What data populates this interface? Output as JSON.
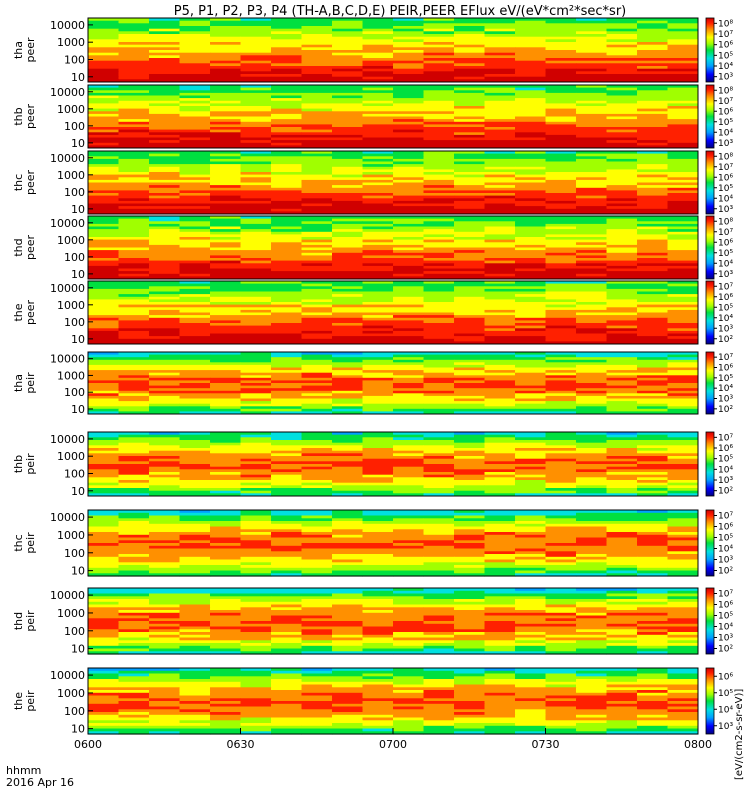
{
  "title": "P5, P1, P2, P3, P4 (TH-A,B,C,D,E) PEIR,PEER EFlux eV/(eV*cm²*sec*sr)",
  "time_axis": {
    "label": "hhmm",
    "date": "2016 Apr 16",
    "ticks": [
      "0600",
      "0630",
      "0700",
      "0730",
      "0800"
    ]
  },
  "colorbar_label": "[eV/(cm2-s-sr-eV)]",
  "y_ticks": [
    "10000",
    "1000",
    "100",
    "10"
  ],
  "panels": [
    {
      "probe": "tha",
      "species": "peer",
      "cb": [
        "10³",
        "10⁴",
        "10⁵",
        "10⁶",
        "10⁷",
        "10⁸"
      ]
    },
    {
      "probe": "thb",
      "species": "peer",
      "cb": [
        "10³",
        "10⁴",
        "10⁵",
        "10⁶",
        "10⁷",
        "10⁸"
      ]
    },
    {
      "probe": "thc",
      "species": "peer",
      "cb": [
        "10³",
        "10⁴",
        "10⁵",
        "10⁶",
        "10⁷",
        "10⁸"
      ]
    },
    {
      "probe": "thd",
      "species": "peer",
      "cb": [
        "10³",
        "10⁴",
        "10⁵",
        "10⁶",
        "10⁷",
        "10⁸"
      ]
    },
    {
      "probe": "the",
      "species": "peer",
      "cb": [
        "10²",
        "10³",
        "10⁴",
        "10⁵",
        "10⁶",
        "10⁷"
      ]
    },
    {
      "probe": "tha",
      "species": "peir",
      "cb": [
        "10²",
        "10³",
        "10⁴",
        "10⁵",
        "10⁶",
        "10⁷"
      ]
    },
    {
      "probe": "thb",
      "species": "peir",
      "cb": [
        "10²",
        "10³",
        "10⁴",
        "10⁵",
        "10⁶",
        "10⁷"
      ]
    },
    {
      "probe": "thc",
      "species": "peir",
      "cb": [
        "10²",
        "10³",
        "10⁴",
        "10⁵",
        "10⁶",
        "10⁷"
      ]
    },
    {
      "probe": "thd",
      "species": "peir",
      "cb": [
        "10²",
        "10³",
        "10⁴",
        "10⁵",
        "10⁶",
        "10⁷"
      ]
    },
    {
      "probe": "the",
      "species": "peir",
      "cb": [
        "10³",
        "10⁴",
        "10⁵",
        "10⁶"
      ]
    }
  ],
  "chart_data": {
    "type": "heatmap",
    "title": "P5, P1, P2, P3, P4 (TH-A,B,C,D,E) PEIR,PEER EFlux eV/(eV*cm²*sec*sr)",
    "xlabel": "hhmm",
    "x_range": [
      "0600",
      "0800"
    ],
    "y_scale": "log",
    "y_range": [
      5,
      25000
    ],
    "z_scale": "log",
    "colormap": [
      "#000080",
      "#0000ff",
      "#00a0ff",
      "#00e0e0",
      "#00e040",
      "#a0ff00",
      "#ffff00",
      "#ff9000",
      "#ff2000",
      "#d00000"
    ],
    "series": [
      {
        "name": "tha peer",
        "z_range": [
          1000,
          100000000
        ]
      },
      {
        "name": "thb peer",
        "z_range": [
          1000,
          100000000
        ]
      },
      {
        "name": "thc peer",
        "z_range": [
          1000,
          100000000
        ]
      },
      {
        "name": "thd peer",
        "z_range": [
          1000,
          100000000
        ]
      },
      {
        "name": "the peer",
        "z_range": [
          100,
          10000000
        ]
      },
      {
        "name": "tha peir",
        "z_range": [
          100,
          10000000
        ]
      },
      {
        "name": "thb peir",
        "z_range": [
          100,
          10000000
        ]
      },
      {
        "name": "thc peir",
        "z_range": [
          100,
          10000000
        ]
      },
      {
        "name": "thd peir",
        "z_range": [
          100,
          10000000
        ]
      },
      {
        "name": "the peir",
        "z_range": [
          1000,
          1000000
        ]
      }
    ]
  }
}
